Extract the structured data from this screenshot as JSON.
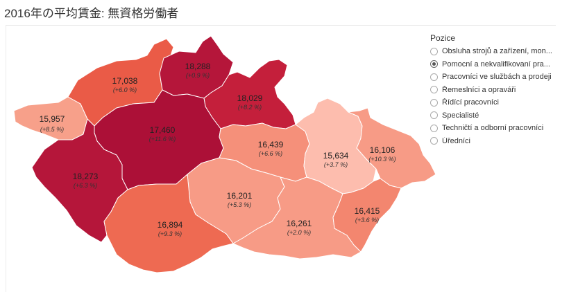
{
  "title": "2016年の平均賃金: 無資格労働者",
  "legend": {
    "title": "Pozice",
    "selected_index": 1,
    "items": [
      "Obsluha strojů a zařízení, mon...",
      "Pomocní a nekvalifikovaní pra...",
      "Pracovníci ve službách a prodeji",
      "Řemeslníci a opraváři",
      "Řídící pracovníci",
      "Specialisté",
      "Techničtí a odborní pracovníci",
      "Úředníci"
    ]
  },
  "regions": [
    {
      "key": "karlovarsky",
      "value": "15,957",
      "change": "(+8.5 %)",
      "color": "#f7a08a"
    },
    {
      "key": "ustecky",
      "value": "17,038",
      "change": "(+6.0 %)",
      "color": "#ea5b47"
    },
    {
      "key": "liberecky",
      "value": "18,288",
      "change": "(+0.9 %)",
      "color": "#b5163a"
    },
    {
      "key": "kralovehradecky",
      "value": "18,029",
      "change": "(+8.2 %)",
      "color": "#c41f3b"
    },
    {
      "key": "stredocesky",
      "value": "17,460",
      "change": "(+11.6 %)",
      "color": "#ac1037"
    },
    {
      "key": "plzensky",
      "value": "18,273",
      "change": "(+6.3 %)",
      "color": "#b5163a"
    },
    {
      "key": "pardubicky",
      "value": "16,439",
      "change": "(+6.6 %)",
      "color": "#f5907a"
    },
    {
      "key": "olomoucky",
      "value": "15,634",
      "change": "(+3.7 %)",
      "color": "#fdbdae"
    },
    {
      "key": "moravskoslezsky",
      "value": "16,106",
      "change": "(+10.3 %)",
      "color": "#f79b86"
    },
    {
      "key": "vysocina",
      "value": "16,201",
      "change": "(+5.3 %)",
      "color": "#f79b86"
    },
    {
      "key": "jihocesky",
      "value": "16,894",
      "change": "(+9.3 %)",
      "color": "#ee6a52"
    },
    {
      "key": "jihomoravsky",
      "value": "16,261",
      "change": "(+2.0 %)",
      "color": "#f79b86"
    },
    {
      "key": "zlinsky",
      "value": "16,415",
      "change": "(+3.6 %)",
      "color": "#f3866f"
    }
  ]
}
